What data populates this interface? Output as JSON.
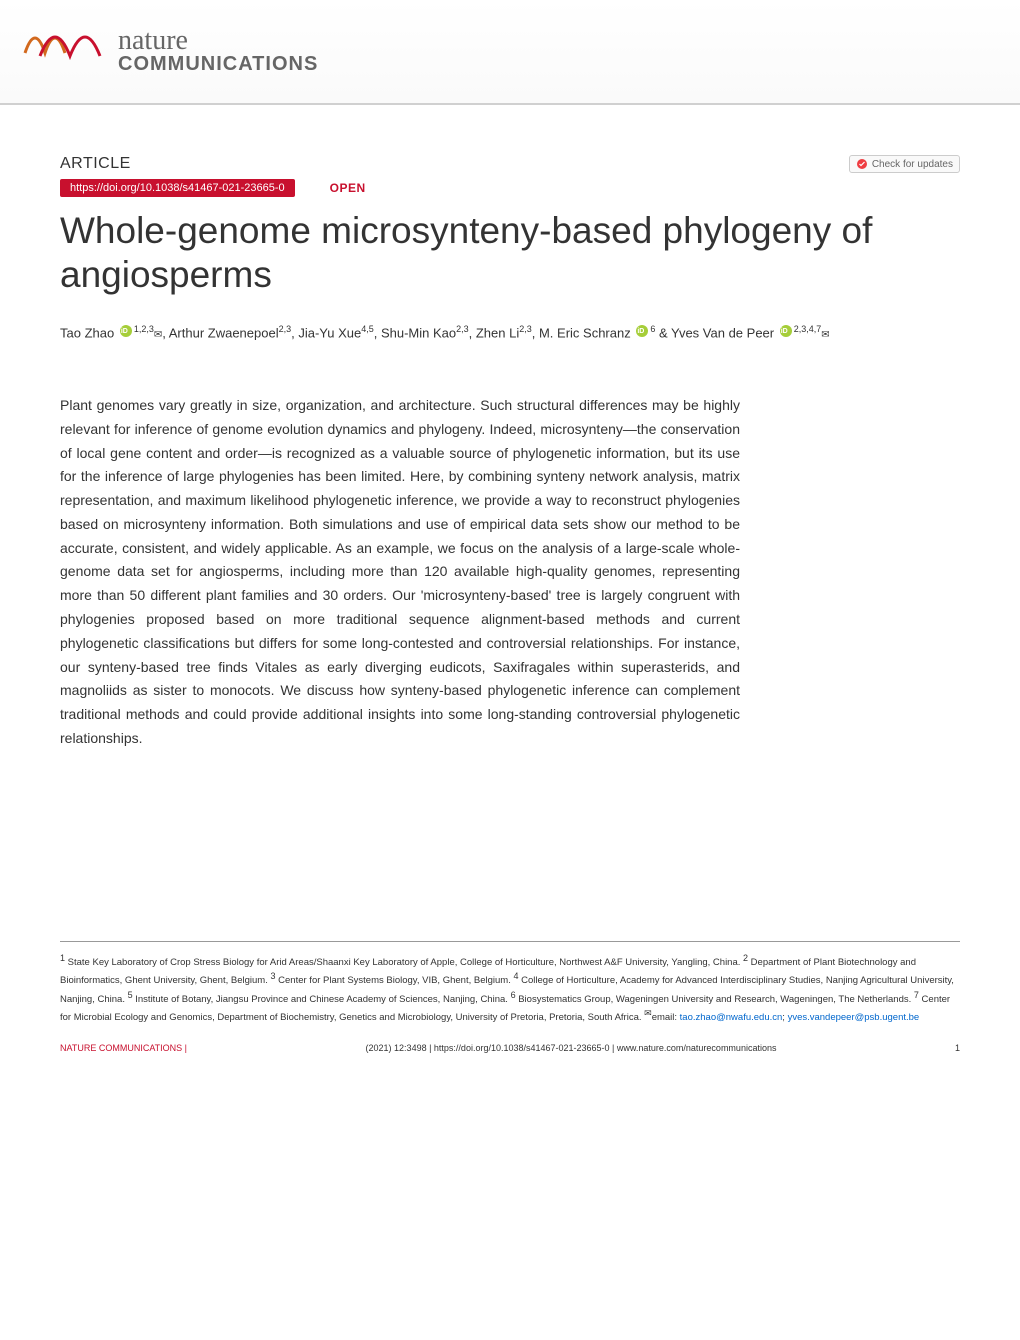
{
  "journal": {
    "name_line1": "nature",
    "name_line2": "COMMUNICATIONS",
    "logo_color_1": "#d2691e",
    "logo_color_2": "#c8102e"
  },
  "article_type": "ARTICLE",
  "check_updates_label": "Check for updates",
  "doi": "https://doi.org/10.1038/s41467-021-23665-0",
  "open_access": "OPEN",
  "title": "Whole-genome microsynteny-based phylogeny of angiosperms",
  "authors_html": "Tao Zhao <span class='orcid-icon' data-name='orcid-icon' data-interactable='false'></span><sup>1,2,3</sup><span class='envelope'>✉</span>, Arthur Zwaenepoel<sup>2,3</sup>, Jia-Yu Xue<sup>4,5</sup>, Shu-Min Kao<sup>2,3</sup>, Zhen Li<sup>2,3</sup>, M. Eric Schranz <span class='orcid-icon' data-name='orcid-icon' data-interactable='false'></span><sup>6</sup> &amp; Yves Van de Peer <span class='orcid-icon' data-name='orcid-icon' data-interactable='false'></span><sup>2,3,4,7</sup><span class='envelope'>✉</span>",
  "abstract": "Plant genomes vary greatly in size, organization, and architecture. Such structural differences may be highly relevant for inference of genome evolution dynamics and phylogeny. Indeed, microsynteny—the conservation of local gene content and order—is recognized as a valuable source of phylogenetic information, but its use for the inference of large phylogenies has been limited. Here, by combining synteny network analysis, matrix representation, and maximum likelihood phylogenetic inference, we provide a way to reconstruct phylogenies based on microsynteny information. Both simulations and use of empirical data sets show our method to be accurate, consistent, and widely applicable. As an example, we focus on the analysis of a large-scale whole-genome data set for angiosperms, including more than 120 available high-quality genomes, representing more than 50 different plant families and 30 orders. Our 'microsynteny-based' tree is largely congruent with phylogenies proposed based on more traditional sequence alignment-based methods and current phylogenetic classifications but differs for some long-contested and controversial relationships. For instance, our synteny-based tree finds Vitales as early diverging eudicots, Saxifragales within superasterids, and magnoliids as sister to monocots. We discuss how synteny-based phylogenetic inference can complement traditional methods and could provide additional insights into some long-standing controversial phylogenetic relationships.",
  "affiliations_html": "<sup>1</sup> State Key Laboratory of Crop Stress Biology for Arid Areas/Shaanxi Key Laboratory of Apple, College of Horticulture, Northwest A&amp;F University, Yangling, China. <sup>2</sup> Department of Plant Biotechnology and Bioinformatics, Ghent University, Ghent, Belgium. <sup>3</sup> Center for Plant Systems Biology, VIB, Ghent, Belgium. <sup>4</sup> College of Horticulture, Academy for Advanced Interdisciplinary Studies, Nanjing Agricultural University, Nanjing, China. <sup>5</sup> Institute of Botany, Jiangsu Province and Chinese Academy of Sciences, Nanjing, China. <sup>6</sup> Biosystematics Group, Wageningen University and Research, Wageningen, The Netherlands. <sup>7</sup> Center for Microbial Ecology and Genomics, Department of Biochemistry, Genetics and Microbiology, University of Pretoria, Pretoria, South Africa. <sup>✉</sup>email: <span class='aff-link'>tao.zhao@nwafu.edu.cn</span>; <span class='aff-link'>yves.vandepeer@psb.ugent.be</span>",
  "footer": {
    "journal": "NATURE COMMUNICATIONS |",
    "citation": "(2021) 12:3498 | https://doi.org/10.1038/s41467-021-23665-0 | www.nature.com/naturecommunications",
    "page": "1"
  },
  "colors": {
    "brand_red": "#c8102e",
    "text": "#333333",
    "link": "#0066cc",
    "orcid": "#a6ce39"
  },
  "typography": {
    "title_size": 37,
    "abstract_size": 14,
    "author_size": 13,
    "affiliation_size": 9.5,
    "footer_size": 9
  }
}
